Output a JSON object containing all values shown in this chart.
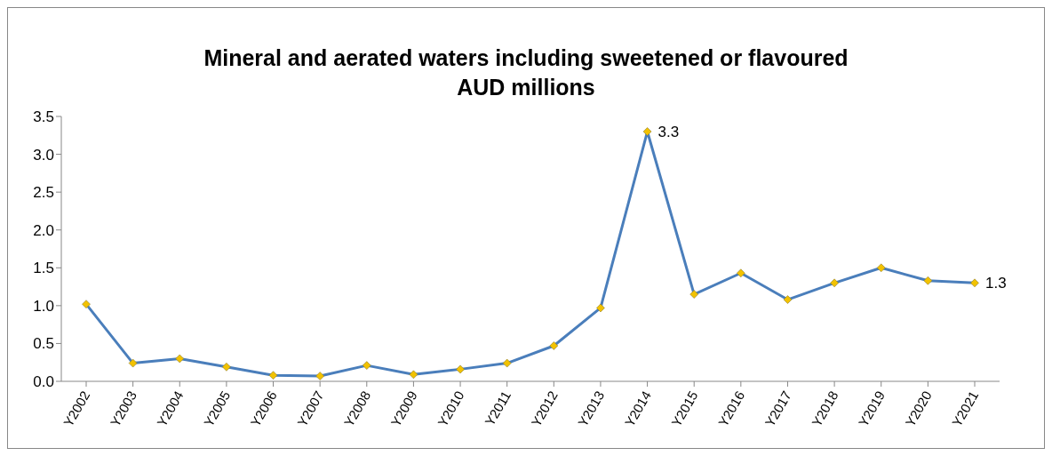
{
  "chart_data": {
    "type": "line",
    "title": "Mineral and aerated waters including sweetened or flavoured\nAUD millions",
    "categories": [
      "Y2002",
      "Y2003",
      "Y2004",
      "Y2005",
      "Y2006",
      "Y2007",
      "Y2008",
      "Y2009",
      "Y2010",
      "Y2011",
      "Y2012",
      "Y2013",
      "Y2014",
      "Y2015",
      "Y2016",
      "Y2017",
      "Y2018",
      "Y2019",
      "Y2020",
      "Y2021"
    ],
    "series": [
      {
        "color": "#4a7ebb",
        "values": [
          1.02,
          0.24,
          0.3,
          0.19,
          0.08,
          0.07,
          0.21,
          0.09,
          0.16,
          0.24,
          0.47,
          0.97,
          3.3,
          1.15,
          1.43,
          1.08,
          1.3,
          1.5,
          1.33,
          1.3
        ],
        "value_labels": [
          null,
          null,
          null,
          null,
          null,
          null,
          null,
          null,
          null,
          null,
          null,
          null,
          "3.3",
          null,
          null,
          null,
          null,
          null,
          null,
          "1.3"
        ]
      }
    ],
    "ylim": [
      0,
      3.5
    ],
    "yticks": [
      {
        "value": 0,
        "label": "0.0"
      },
      0.5,
      {
        "value": 1,
        "label": "1.0"
      },
      1.5,
      {
        "value": 2,
        "label": "2.0"
      },
      2.5,
      {
        "value": 3,
        "label": "3.0"
      },
      3.5
    ],
    "marker": "diamond",
    "grid": false,
    "legend": false
  }
}
